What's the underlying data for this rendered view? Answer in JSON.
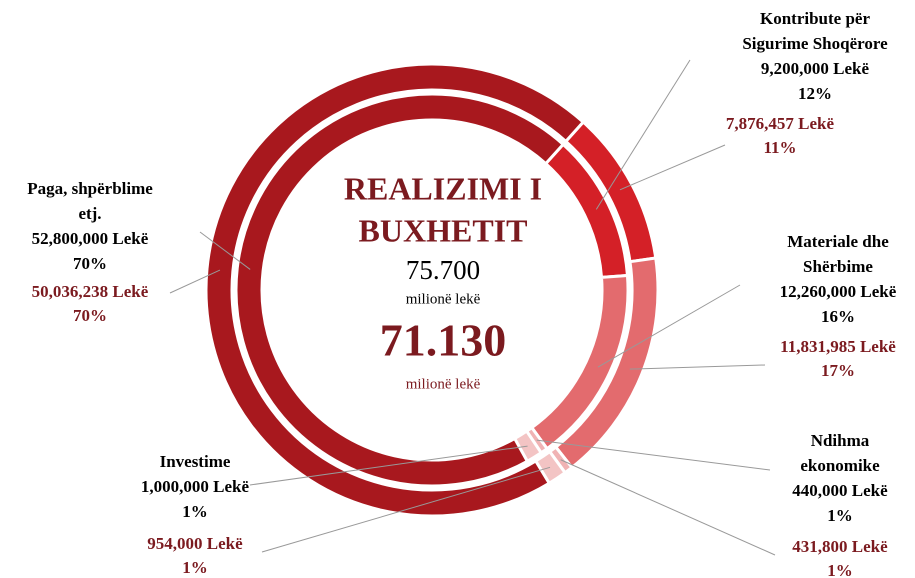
{
  "chart_data": {
    "type": "donut",
    "center": {
      "title": [
        "REALIZIMI I",
        "BUXHETIT"
      ],
      "plan_total": "75.700",
      "plan_unit": "milionë lekë",
      "actual_total": "71.130",
      "actual_unit": "milionë lekë"
    },
    "categories": [
      [
        "Kontribute  për",
        "Sigurime  Shoqërore"
      ],
      [
        "Materiale dhe",
        "Shërbime"
      ],
      [
        "Ndihma",
        "ekonomike"
      ],
      [
        "Investime"
      ],
      [
        "Paga, shpërblime",
        "etj."
      ]
    ],
    "colors": [
      "#d42027",
      "#e36b6e",
      "#f0b3b4",
      "#f3c4c4",
      "#a8181e"
    ],
    "series": [
      {
        "ring": "inner",
        "values": [
          9200000,
          12260000,
          440000,
          1000000,
          52800000
        ],
        "value_labels": [
          "9,200,000 Lekë",
          "12,260,000 Lekë",
          "440,000 Lekë",
          "1,000,000 Lekë",
          "52,800,000 Lekë"
        ],
        "percentages": [
          12,
          16,
          1,
          1,
          70
        ],
        "percentage_labels": [
          "12%",
          "16%",
          "1%",
          "1%",
          "70%"
        ]
      },
      {
        "ring": "outer",
        "values": [
          7876457,
          11831985,
          431800,
          954000,
          50036238
        ],
        "value_labels": [
          "7,876,457 Lekë",
          "11,831,985 Lekë",
          "431,800 Lekë",
          "954,000 Lekë",
          "50,036,238 Lekë"
        ],
        "percentages": [
          11,
          17,
          1,
          1,
          70
        ],
        "percentage_labels": [
          "11%",
          "17%",
          "1%",
          "1%",
          "70%"
        ]
      }
    ]
  }
}
